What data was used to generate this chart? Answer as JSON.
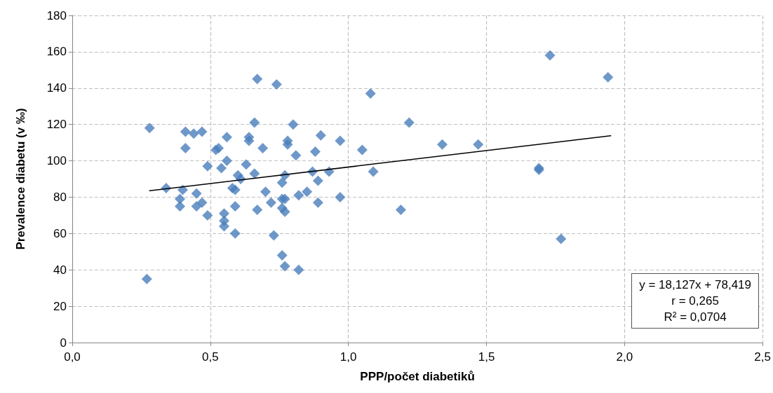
{
  "chart_data": {
    "type": "scatter",
    "xlabel": "PPP/počet diabetiků",
    "ylabel": "Prevalence diabetu (v ‰)",
    "xlim": [
      0,
      2.5
    ],
    "xticks": [
      {
        "value": 0,
        "label": "0,0"
      },
      {
        "value": 0.5,
        "label": "0,5"
      },
      {
        "value": 1,
        "label": "1,0"
      },
      {
        "value": 1.5,
        "label": "1,5"
      },
      {
        "value": 2,
        "label": "2,0"
      },
      {
        "value": 2.5,
        "label": "2,5"
      }
    ],
    "ylim": [
      0,
      180
    ],
    "yticks": [
      0,
      20,
      40,
      60,
      80,
      100,
      120,
      140,
      160,
      180
    ],
    "grid": true,
    "marker": "diamond",
    "annotations": [
      "y = 18,127x + 78,419",
      "r = 0,265",
      "R² = 0,0704"
    ],
    "series": [
      {
        "color": "#4a7ebb",
        "x": [
          0.28,
          0.27,
          0.34,
          0.39,
          0.39,
          0.4,
          0.41,
          0.41,
          0.44,
          0.45,
          0.45,
          0.47,
          0.47,
          0.49,
          0.49,
          0.52,
          0.53,
          0.54,
          0.56,
          0.55,
          0.55,
          0.55,
          0.56,
          0.58,
          0.59,
          0.59,
          0.59,
          0.6,
          0.61,
          0.63,
          0.64,
          0.64,
          0.66,
          0.66,
          0.67,
          0.67,
          0.69,
          0.7,
          0.72,
          0.73,
          0.74,
          0.76,
          0.76,
          0.76,
          0.76,
          0.77,
          0.77,
          0.77,
          0.77,
          0.78,
          0.78,
          0.8,
          0.81,
          0.82,
          0.82,
          0.85,
          0.87,
          0.88,
          0.89,
          0.89,
          0.9,
          0.93,
          0.97,
          0.97,
          1.05,
          1.08,
          1.09,
          1.19,
          1.22,
          1.34,
          1.47,
          1.69,
          1.69,
          1.73,
          1.77,
          1.94
        ],
        "values": [
          118,
          35,
          85,
          79,
          75,
          84,
          116,
          107,
          115,
          82,
          75,
          116,
          77,
          97,
          70,
          106,
          107,
          96,
          100,
          71,
          67,
          64,
          113,
          85,
          84,
          75,
          60,
          92,
          90,
          98,
          111,
          113,
          121,
          93,
          73,
          145,
          107,
          83,
          77,
          59,
          142,
          79,
          88,
          48,
          74,
          92,
          72,
          42,
          79,
          109,
          111,
          120,
          103,
          40,
          81,
          83,
          94,
          105,
          89,
          77,
          114,
          94,
          80,
          111,
          106,
          137,
          94,
          73,
          121,
          109,
          109,
          96,
          95,
          158,
          57,
          146
        ]
      },
      {
        "type": "line",
        "color": "#000000",
        "x": [
          0.28,
          1.95
        ],
        "values": [
          83.5,
          113.8
        ],
        "marker": "none",
        "line_style": "solid"
      }
    ]
  }
}
